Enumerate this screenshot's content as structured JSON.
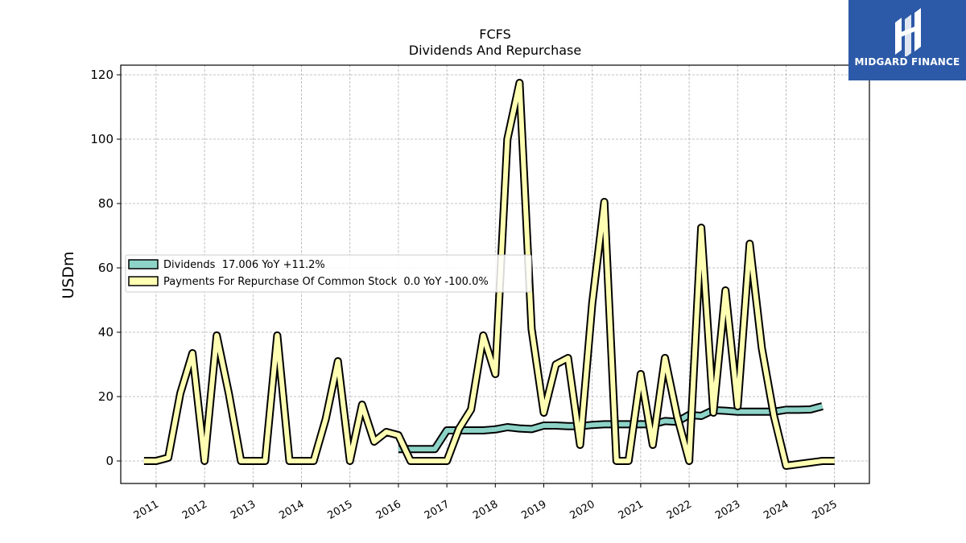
{
  "chart_data": {
    "type": "line",
    "title": "FCFS",
    "subtitle": "Dividends And Repurchase",
    "ylabel": "USDm",
    "xlabel": "",
    "ylim": [
      -7,
      123
    ],
    "xlim": [
      2010.27,
      2025.72
    ],
    "yticks": [
      0,
      20,
      40,
      60,
      80,
      100,
      120
    ],
    "xticks": [
      "2011",
      "2012",
      "2013",
      "2014",
      "2015",
      "2016",
      "2017",
      "2018",
      "2019",
      "2020",
      "2021",
      "2022",
      "2023",
      "2024",
      "2025"
    ],
    "grid": true,
    "legend_position": "center-left",
    "series": [
      {
        "name": "Dividends  17.006 YoY +11.2%",
        "color": "#8dd3c7",
        "x": [
          2016.0,
          2016.25,
          2016.5,
          2016.75,
          2017.0,
          2017.25,
          2017.5,
          2017.75,
          2018.0,
          2018.25,
          2018.5,
          2018.75,
          2019.0,
          2019.25,
          2019.5,
          2019.75,
          2020.0,
          2020.25,
          2020.5,
          2020.75,
          2021.0,
          2021.25,
          2021.5,
          2021.75,
          2022.0,
          2022.25,
          2022.5,
          2022.75,
          2023.0,
          2023.25,
          2023.5,
          2023.75,
          2024.0,
          2024.25,
          2024.5,
          2024.75
        ],
        "values": [
          3.7,
          3.7,
          3.7,
          3.7,
          9.5,
          9.5,
          9.5,
          9.5,
          9.8,
          10.5,
          10.1,
          9.9,
          11.0,
          11.0,
          10.8,
          10.8,
          11.2,
          11.4,
          11.4,
          11.4,
          11.4,
          11.4,
          12.4,
          12.2,
          14.3,
          14.0,
          15.8,
          15.6,
          15.3,
          15.3,
          15.3,
          15.3,
          15.9,
          15.9,
          16.0,
          17.0
        ]
      },
      {
        "name": "Payments For Repurchase Of Common Stock  0.0 YoY -100.0%",
        "color": "#ffffb3",
        "x": [
          2010.75,
          2011.0,
          2011.25,
          2011.5,
          2011.75,
          2012.0,
          2012.25,
          2012.5,
          2012.75,
          2013.0,
          2013.25,
          2013.5,
          2013.75,
          2014.0,
          2014.25,
          2014.5,
          2014.75,
          2015.0,
          2015.25,
          2015.5,
          2015.75,
          2016.0,
          2016.25,
          2016.5,
          2016.75,
          2017.0,
          2017.25,
          2017.5,
          2017.75,
          2018.0,
          2018.25,
          2018.5,
          2018.75,
          2019.0,
          2019.25,
          2019.5,
          2019.75,
          2020.0,
          2020.25,
          2020.5,
          2020.75,
          2021.0,
          2021.25,
          2021.5,
          2021.75,
          2022.0,
          2022.25,
          2022.5,
          2022.75,
          2023.0,
          2023.25,
          2023.5,
          2023.75,
          2024.0,
          2024.25,
          2024.5,
          2024.75,
          2025.0
        ],
        "values": [
          0.0,
          0.0,
          1.0,
          21.0,
          33.5,
          0.0,
          39.0,
          21.0,
          0.0,
          0.0,
          0.0,
          39.0,
          0.0,
          0.0,
          0.0,
          13.0,
          31.0,
          0.0,
          17.5,
          6.0,
          9.0,
          8.0,
          0.0,
          0.0,
          0.0,
          0.0,
          10.0,
          16.0,
          39.0,
          27.0,
          100.0,
          117.5,
          41.0,
          15.0,
          30.0,
          32.0,
          5.0,
          49.0,
          80.5,
          0.0,
          0.0,
          27.0,
          5.0,
          32.0,
          14.0,
          0.0,
          72.5,
          15.0,
          53.0,
          17.0,
          67.5,
          35.0,
          14.0,
          -1.5,
          -1.0,
          -0.5,
          0.0,
          0.0
        ]
      }
    ]
  },
  "logo": {
    "text": "MIDGARD FINANCE",
    "color": "#2d5aa8"
  }
}
